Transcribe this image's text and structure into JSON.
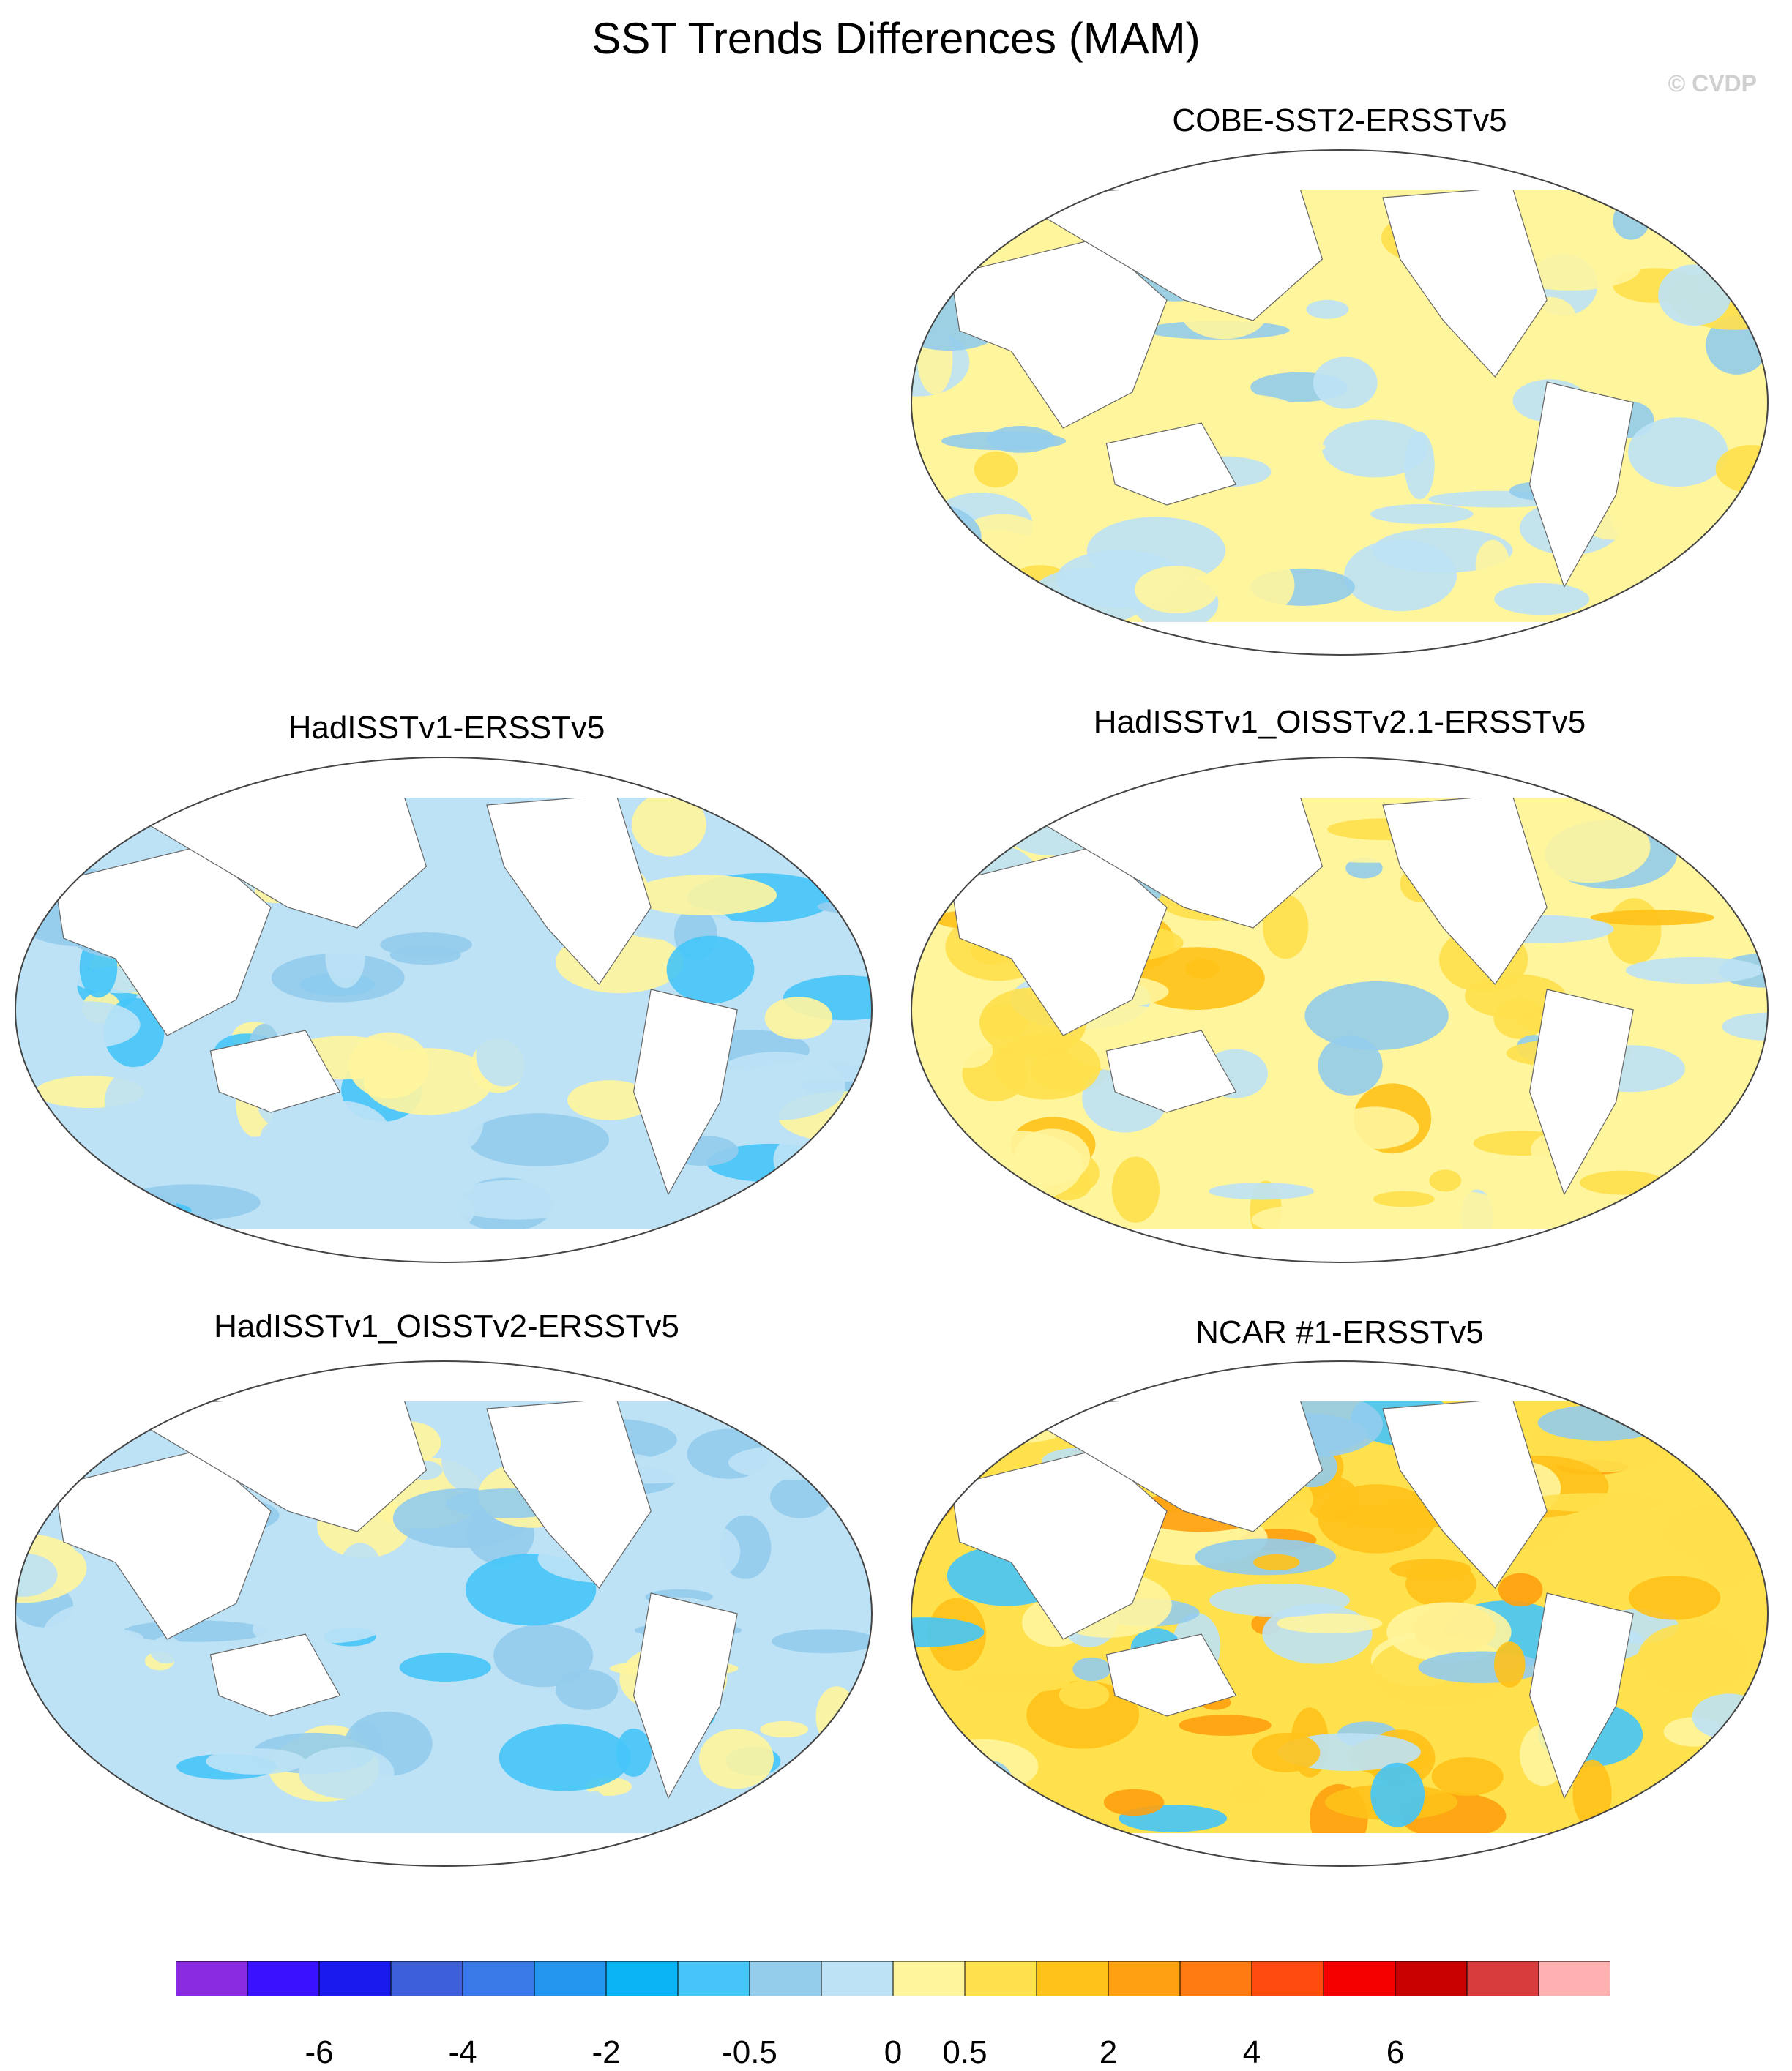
{
  "title": "SST Trends Differences (MAM)",
  "watermark": "© CVDP",
  "panels": [
    {
      "id": "p1",
      "title": "COBE-SST2-ERSSTv5",
      "scheme": "mixed"
    },
    {
      "id": "p2",
      "title": "HadISSTv1-ERSSTv5",
      "scheme": "cool"
    },
    {
      "id": "p3",
      "title": "HadISSTv1_OISSTv2.1-ERSSTv5",
      "scheme": "warm"
    },
    {
      "id": "p4",
      "title": "HadISSTv1_OISSTv2-ERSSTv5",
      "scheme": "cool"
    },
    {
      "id": "p5",
      "title": "NCAR #1-ERSSTv5",
      "scheme": "hot"
    }
  ],
  "colorbar": {
    "colors": [
      "#8a2be2",
      "#3a12ff",
      "#1a1aee",
      "#3d5fd9",
      "#3a7ae8",
      "#2596f0",
      "#0ab4f5",
      "#45c5f8",
      "#94ccec",
      "#bde2f5",
      "#fff59d",
      "#ffe04d",
      "#ffc21a",
      "#ffa010",
      "#ff7a10",
      "#ff4a10",
      "#f40000",
      "#c80000",
      "#d83c3c",
      "#ffb0b0"
    ],
    "labels": [
      "-6",
      "-4",
      "-2",
      "-0.5",
      "0",
      "0.5",
      "2",
      "4",
      "6"
    ]
  }
}
